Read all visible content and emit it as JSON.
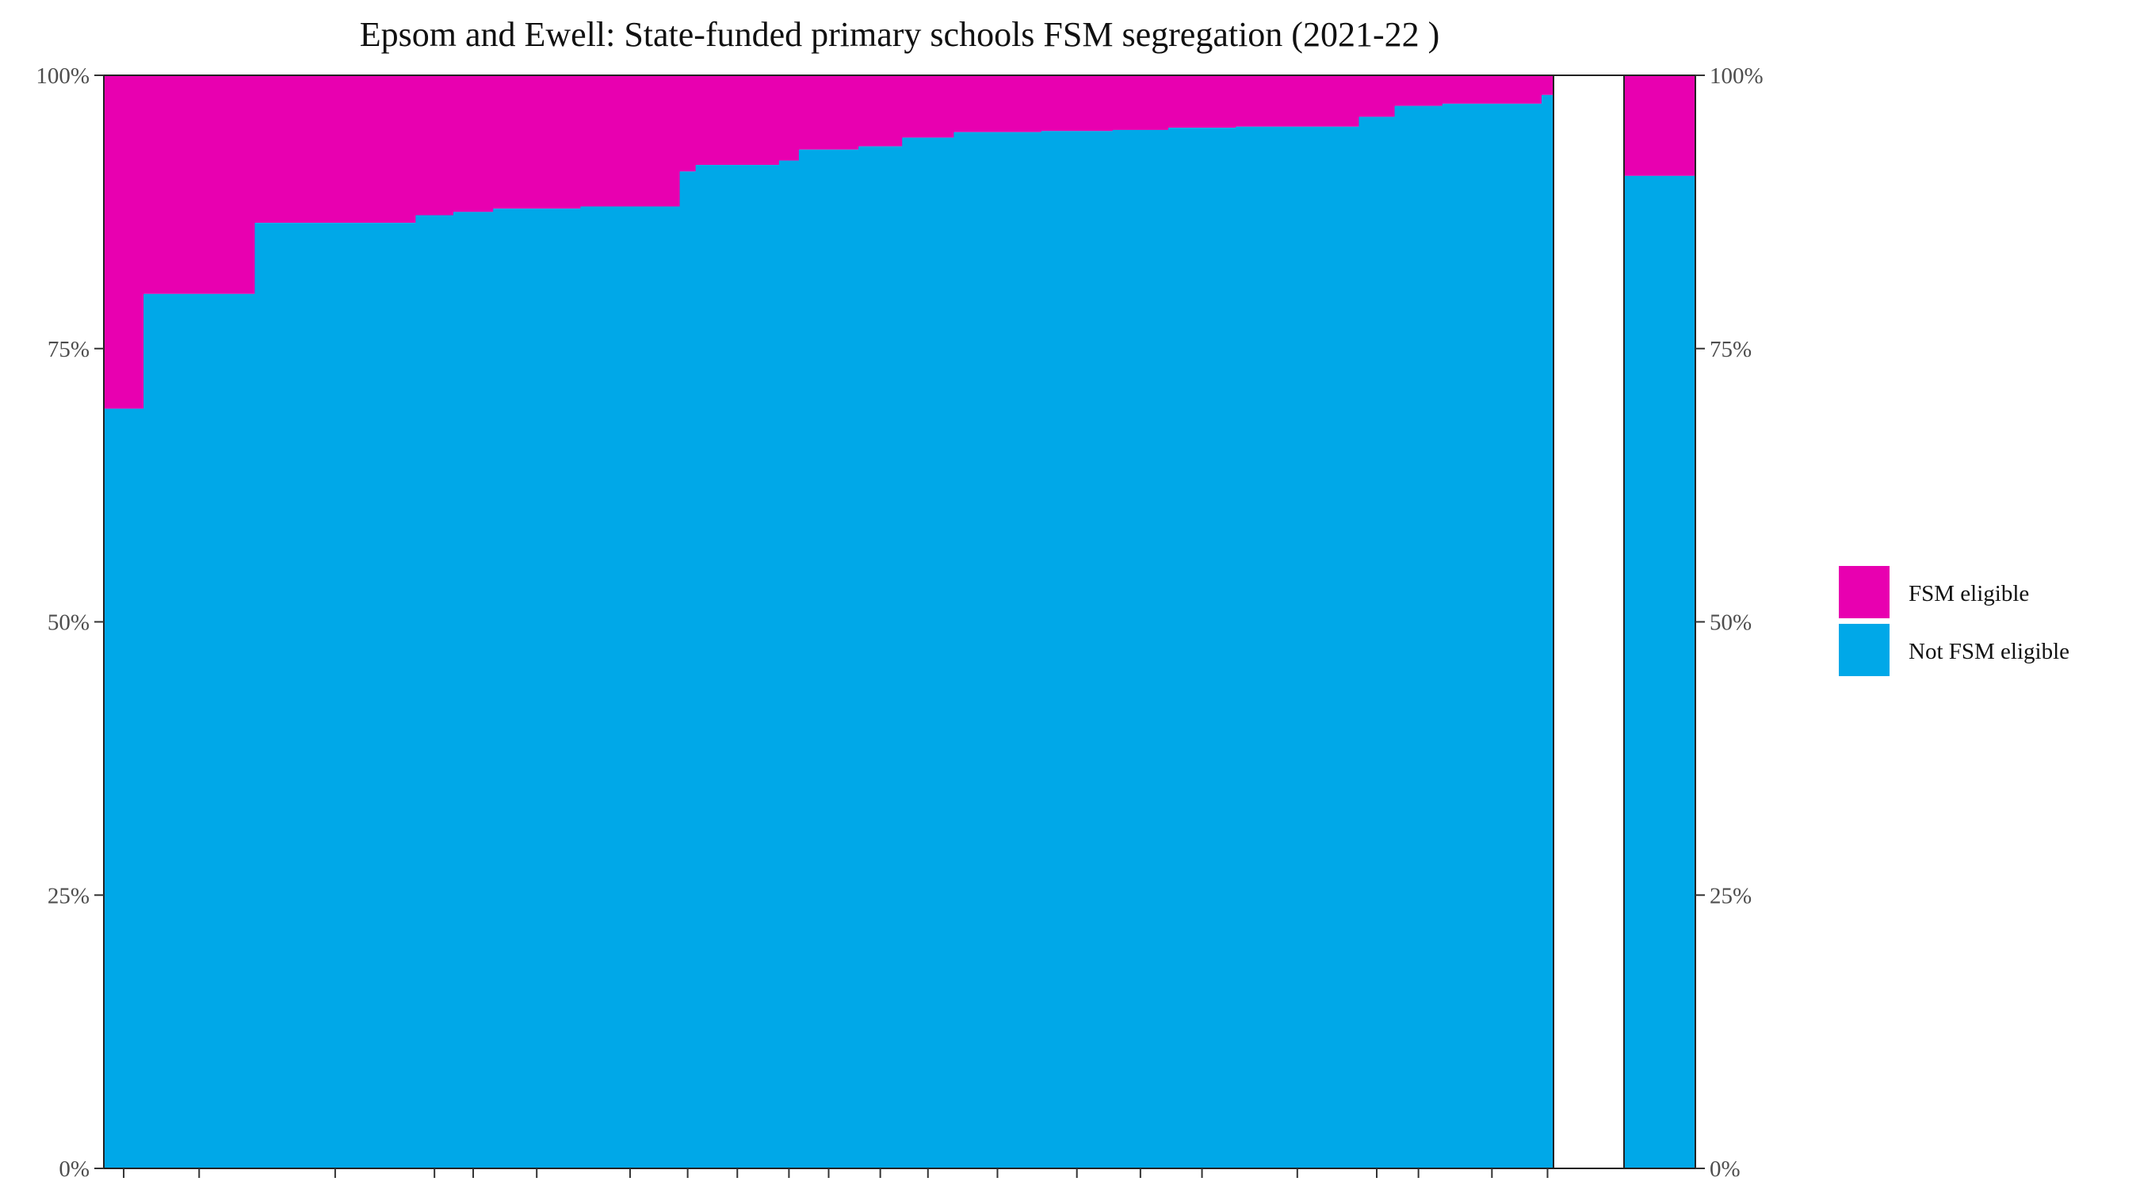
{
  "chart_data": {
    "type": "bar",
    "subtype": "stacked-variable-width-100-percent",
    "title": "Epsom and Ewell: State-funded primary schools FSM segregation (2021-22 )",
    "xlabel": "",
    "ylabel": "",
    "ylim": [
      0,
      100
    ],
    "y_ticks": [
      "0%",
      "25%",
      "50%",
      "75%",
      "100%"
    ],
    "y_ticks_right": [
      "0%",
      "25%",
      "50%",
      "75%",
      "100%"
    ],
    "grid": false,
    "legend_placement": "right",
    "colors": {
      "fsm": "#e800b0",
      "not_fsm": "#00a8e8"
    },
    "series": [
      {
        "name": "FSM eligible",
        "color": "#e800b0"
      },
      {
        "name": "Not FSM eligible",
        "color": "#00a8e8"
      }
    ],
    "schools_axis_range": [
      0,
      3.65
    ],
    "schools": [
      {
        "start": 0.0,
        "end": 0.1,
        "not_fsm_pct": 69.5
      },
      {
        "start": 0.1,
        "end": 0.38,
        "not_fsm_pct": 80.0
      },
      {
        "start": 0.38,
        "end": 0.785,
        "not_fsm_pct": 86.5
      },
      {
        "start": 0.785,
        "end": 0.88,
        "not_fsm_pct": 87.2
      },
      {
        "start": 0.88,
        "end": 0.98,
        "not_fsm_pct": 87.5
      },
      {
        "start": 0.98,
        "end": 1.2,
        "not_fsm_pct": 87.8
      },
      {
        "start": 1.2,
        "end": 1.45,
        "not_fsm_pct": 88.0
      },
      {
        "start": 1.45,
        "end": 1.49,
        "not_fsm_pct": 91.2
      },
      {
        "start": 1.49,
        "end": 1.7,
        "not_fsm_pct": 91.8
      },
      {
        "start": 1.7,
        "end": 1.75,
        "not_fsm_pct": 92.2
      },
      {
        "start": 1.75,
        "end": 1.9,
        "not_fsm_pct": 93.2
      },
      {
        "start": 1.9,
        "end": 2.01,
        "not_fsm_pct": 93.5
      },
      {
        "start": 2.01,
        "end": 2.14,
        "not_fsm_pct": 94.3
      },
      {
        "start": 2.14,
        "end": 2.36,
        "not_fsm_pct": 94.8
      },
      {
        "start": 2.36,
        "end": 2.54,
        "not_fsm_pct": 94.9
      },
      {
        "start": 2.54,
        "end": 2.68,
        "not_fsm_pct": 95.0
      },
      {
        "start": 2.68,
        "end": 2.85,
        "not_fsm_pct": 95.2
      },
      {
        "start": 2.85,
        "end": 3.16,
        "not_fsm_pct": 95.3
      },
      {
        "start": 3.16,
        "end": 3.25,
        "not_fsm_pct": 96.2
      },
      {
        "start": 3.25,
        "end": 3.37,
        "not_fsm_pct": 97.2
      },
      {
        "start": 3.37,
        "end": 3.62,
        "not_fsm_pct": 97.4
      },
      {
        "start": 3.62,
        "end": 3.65,
        "not_fsm_pct": 98.2
      }
    ],
    "total_bar": {
      "not_fsm_pct": 90.8
    }
  }
}
